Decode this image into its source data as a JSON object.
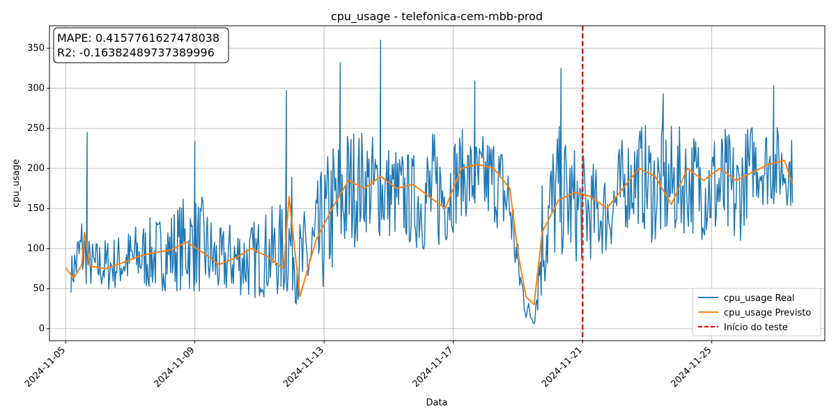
{
  "chart_data": {
    "type": "line",
    "title": "cpu_usage - telefonica-cem-mbb-prod",
    "xlabel": "Data",
    "ylabel": "cpu_usage",
    "xlim": [
      "2024-11-04T12:00",
      "2024-11-28T12:00"
    ],
    "ylim": [
      -15,
      378
    ],
    "y_ticks": [
      0,
      50,
      100,
      150,
      200,
      250,
      300,
      350
    ],
    "x_ticks": [
      "2024-11-05",
      "2024-11-09",
      "2024-11-13",
      "2024-11-17",
      "2024-11-21",
      "2024-11-25"
    ],
    "grid": true,
    "legend_position": "lower-right",
    "metrics": {
      "mape": "MAPE: 0.4157761627478038",
      "r2": "R2: -0.16382489737389996"
    },
    "test_start": {
      "label": "Início do teste",
      "x": "2024-11-21T00:00",
      "color": "#e31a1c"
    },
    "series": [
      {
        "name": "cpu_usage Real",
        "color": "#1f77b4",
        "band": true,
        "x": [
          "2024-11-05T04:00",
          "2024-11-05T12:00",
          "2024-11-05T18:00",
          "2024-11-06T06:00",
          "2024-11-06T18:00",
          "2024-11-07T06:00",
          "2024-11-07T18:00",
          "2024-11-08T06:00",
          "2024-11-08T18:00",
          "2024-11-09T06:00",
          "2024-11-09T18:00",
          "2024-11-10T06:00",
          "2024-11-10T18:00",
          "2024-11-11T06:00",
          "2024-11-11T18:00",
          "2024-11-12T00:00",
          "2024-11-12T06:00",
          "2024-11-12T18:00",
          "2024-11-13T06:00",
          "2024-11-13T18:00",
          "2024-11-14T06:00",
          "2024-11-14T18:00",
          "2024-11-15T06:00",
          "2024-11-15T18:00",
          "2024-11-16T06:00",
          "2024-11-16T18:00",
          "2024-11-17T06:00",
          "2024-11-17T18:00",
          "2024-11-18T06:00",
          "2024-11-18T18:00",
          "2024-11-19T00:00",
          "2024-11-19T06:00",
          "2024-11-19T12:00",
          "2024-11-19T18:00",
          "2024-11-20T06:00",
          "2024-11-20T18:00",
          "2024-11-21T06:00",
          "2024-11-21T18:00",
          "2024-11-22T06:00",
          "2024-11-22T18:00",
          "2024-11-23T06:00",
          "2024-11-23T18:00",
          "2024-11-24T06:00",
          "2024-11-24T18:00",
          "2024-11-25T06:00",
          "2024-11-25T18:00",
          "2024-11-26T06:00",
          "2024-11-26T18:00",
          "2024-11-27T06:00",
          "2024-11-27T12:00"
        ],
        "low": [
          45,
          55,
          50,
          45,
          50,
          50,
          45,
          48,
          45,
          42,
          38,
          42,
          35,
          40,
          35,
          40,
          22,
          25,
          60,
          90,
          120,
          110,
          110,
          100,
          90,
          100,
          140,
          130,
          130,
          100,
          45,
          10,
          5,
          30,
          90,
          80,
          85,
          90,
          120,
          130,
          100,
          110,
          120,
          110,
          100,
          90,
          160,
          150,
          155,
          150
        ],
        "high": [
          90,
          150,
          110,
          115,
          120,
          135,
          140,
          150,
          170,
          165,
          125,
          140,
          135,
          150,
          160,
          190,
          140,
          180,
          240,
          260,
          250,
          240,
          230,
          220,
          250,
          245,
          250,
          240,
          250,
          220,
          110,
          45,
          15,
          210,
          260,
          230,
          210,
          200,
          240,
          260,
          250,
          255,
          250,
          250,
          260,
          240,
          260,
          260,
          250,
          240
        ],
        "spikes": [
          {
            "x": "2024-11-05T16:00",
            "y": 245
          },
          {
            "x": "2024-11-09T00:00",
            "y": 234
          },
          {
            "x": "2024-11-11T20:00",
            "y": 297
          },
          {
            "x": "2024-11-13T12:00",
            "y": 332
          },
          {
            "x": "2024-11-14T18:00",
            "y": 360
          },
          {
            "x": "2024-11-17T16:00",
            "y": 309
          },
          {
            "x": "2024-11-20T08:00",
            "y": 325
          },
          {
            "x": "2024-11-23T12:00",
            "y": 293
          },
          {
            "x": "2024-11-26T22:00",
            "y": 303
          }
        ]
      },
      {
        "name": "cpu_usage Previsto",
        "color": "#ff7f0e",
        "x": [
          "2024-11-05T00:00",
          "2024-11-05T06:00",
          "2024-11-05T12:00",
          "2024-11-05T14:00",
          "2024-11-05T18:00",
          "2024-11-06T06:00",
          "2024-11-06T18:00",
          "2024-11-07T06:00",
          "2024-11-07T18:00",
          "2024-11-08T06:00",
          "2024-11-08T18:00",
          "2024-11-09T06:00",
          "2024-11-09T18:00",
          "2024-11-10T06:00",
          "2024-11-10T18:00",
          "2024-11-11T06:00",
          "2024-11-11T18:00",
          "2024-11-11T22:00",
          "2024-11-12T06:00",
          "2024-11-12T18:00",
          "2024-11-13T06:00",
          "2024-11-13T18:00",
          "2024-11-14T06:00",
          "2024-11-14T18:00",
          "2024-11-15T06:00",
          "2024-11-15T18:00",
          "2024-11-16T06:00",
          "2024-11-16T18:00",
          "2024-11-17T06:00",
          "2024-11-17T18:00",
          "2024-11-18T06:00",
          "2024-11-18T18:00",
          "2024-11-19T00:00",
          "2024-11-19T06:00",
          "2024-11-19T12:00",
          "2024-11-19T18:00",
          "2024-11-20T06:00",
          "2024-11-20T18:00",
          "2024-11-21T06:00",
          "2024-11-21T18:00",
          "2024-11-22T06:00",
          "2024-11-22T18:00",
          "2024-11-23T06:00",
          "2024-11-23T18:00",
          "2024-11-24T06:00",
          "2024-11-24T18:00",
          "2024-11-25T06:00",
          "2024-11-25T18:00",
          "2024-11-26T06:00",
          "2024-11-26T18:00",
          "2024-11-27T06:00",
          "2024-11-27T12:00"
        ],
        "y": [
          76,
          63,
          80,
          120,
          78,
          75,
          82,
          90,
          95,
          98,
          108,
          95,
          80,
          88,
          100,
          90,
          75,
          165,
          40,
          110,
          150,
          185,
          175,
          190,
          175,
          180,
          165,
          150,
          200,
          205,
          200,
          175,
          95,
          40,
          30,
          120,
          160,
          170,
          165,
          150,
          175,
          200,
          190,
          155,
          200,
          185,
          200,
          185,
          195,
          205,
          210,
          180
        ]
      }
    ]
  }
}
